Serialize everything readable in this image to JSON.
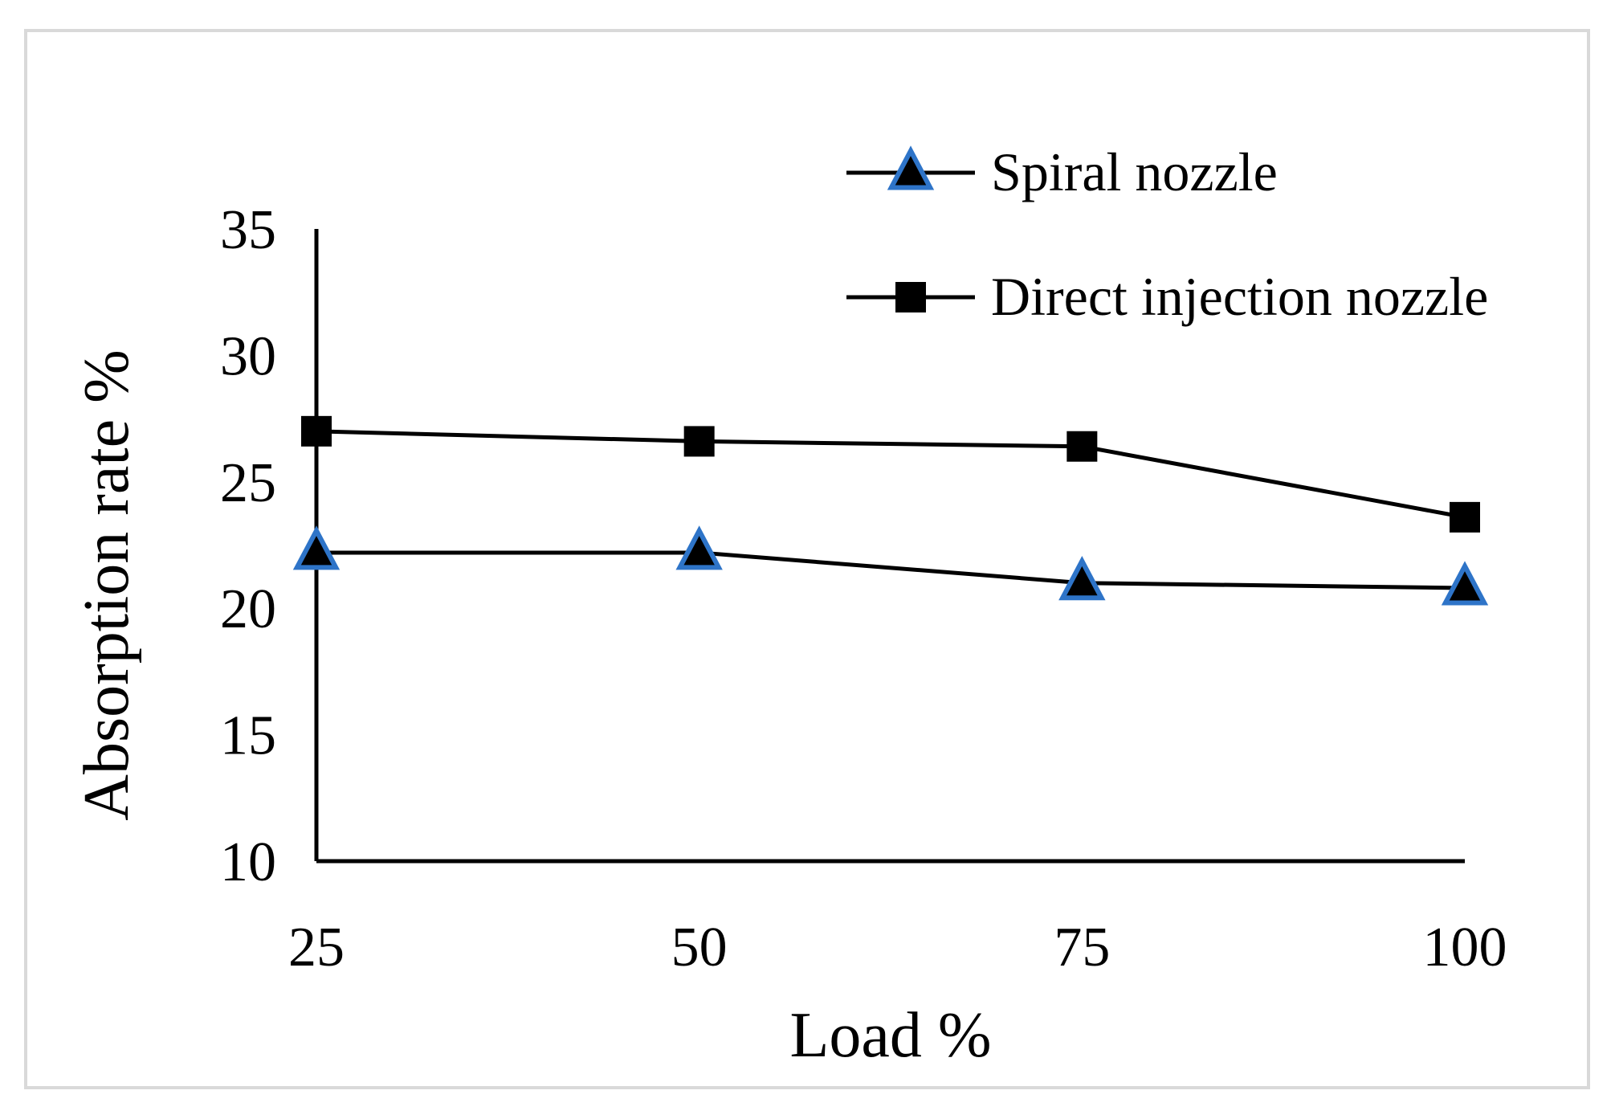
{
  "chart_data": {
    "type": "line",
    "title": "",
    "xlabel": "Load %",
    "ylabel": "Absorption rate %",
    "categories": [
      "25",
      "50",
      "75",
      "100"
    ],
    "yticks": [
      "10",
      "15",
      "20",
      "25",
      "30",
      "35"
    ],
    "ylim": [
      10,
      35
    ],
    "grid": false,
    "legend_position": "top-right",
    "series": [
      {
        "name": "Spiral nozzle",
        "marker": "triangle",
        "values": [
          22.2,
          22.2,
          21.0,
          20.8
        ]
      },
      {
        "name": "Direct injection nozzle",
        "marker": "square",
        "values": [
          27.0,
          26.6,
          26.4,
          23.6
        ]
      }
    ]
  },
  "colors": {
    "line": "#000000",
    "triangle_fill": "#000000",
    "triangle_outline": "#2e74c8",
    "square_fill": "#000000",
    "frame_border": "#d9d9d9"
  }
}
